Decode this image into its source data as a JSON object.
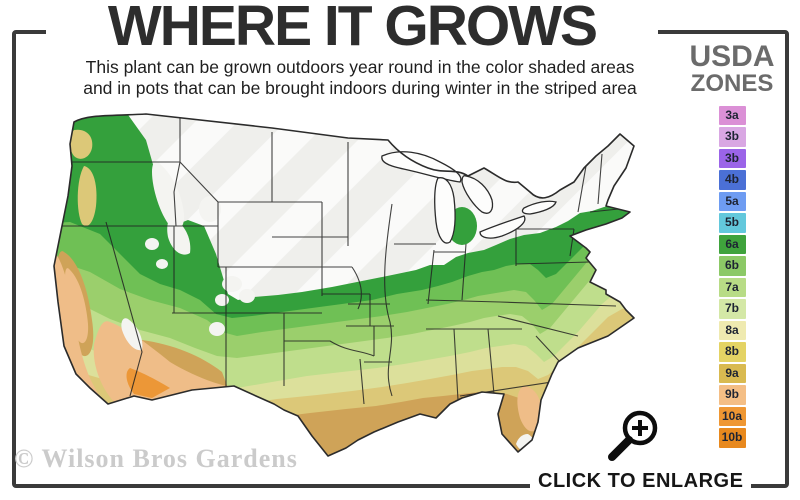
{
  "header": {
    "title": "WHERE IT GROWS",
    "subtitle_line1": "This plant can be grown outdoors year round in the color shaded areas",
    "subtitle_line2": "and in pots that can be brought indoors during winter in the striped area"
  },
  "legend": {
    "title_line1": "USDA",
    "title_line2": "ZONES",
    "zones": [
      {
        "label": "3a",
        "color": "#DB90D6"
      },
      {
        "label": "3b",
        "color": "#D9A7E3"
      },
      {
        "label": "3b",
        "color": "#9B64E8"
      },
      {
        "label": "4b",
        "color": "#4B70D6"
      },
      {
        "label": "5a",
        "color": "#6E9CF2"
      },
      {
        "label": "5b",
        "color": "#63C8DC"
      },
      {
        "label": "6a",
        "color": "#3FA33C"
      },
      {
        "label": "6b",
        "color": "#8CC966"
      },
      {
        "label": "7a",
        "color": "#B8DC86"
      },
      {
        "label": "7b",
        "color": "#D4E8A6"
      },
      {
        "label": "8a",
        "color": "#EFEAB0"
      },
      {
        "label": "8b",
        "color": "#E4D364"
      },
      {
        "label": "9a",
        "color": "#D9BA50"
      },
      {
        "label": "9b",
        "color": "#F4BE85"
      },
      {
        "label": "10a",
        "color": "#EF9733"
      },
      {
        "label": "10b",
        "color": "#E8891E"
      }
    ]
  },
  "map": {
    "colors": {
      "base": "#EFEFEC",
      "stripe": "#FFFFFF",
      "z6a": "#34A03C",
      "z6b": "#6FC055",
      "z7a": "#9BCF6C",
      "z7b": "#BFDE8C",
      "z8a": "#DCE09B",
      "z8b": "#DCC878",
      "z9a": "#CFA358",
      "z9b": "#EFBD88",
      "z10a": "#EC9737",
      "mottle": "#F4F4F1",
      "lake": "#FDFDFC",
      "outline": "#2B2B2B",
      "state_line": "#222222"
    }
  },
  "footer": {
    "watermark": "© Wilson Bros Gardens",
    "cta_label": "CLICK TO ENLARGE"
  },
  "frame": {
    "color": "#3A3A3A"
  }
}
